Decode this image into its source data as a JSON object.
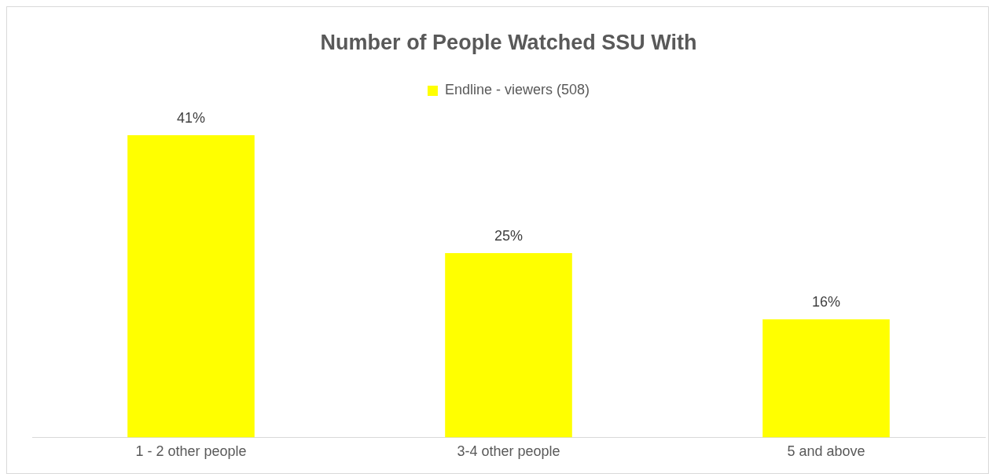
{
  "chart_data": {
    "type": "bar",
    "title": "Number of People Watched SSU With",
    "categories": [
      "1 - 2 other people",
      "3-4 other people",
      "5 and above"
    ],
    "series": [
      {
        "name": "Endline - viewers (508)",
        "color": "#ffff00",
        "values": [
          41,
          25,
          16
        ],
        "value_labels": [
          "41%",
          "25%",
          "16%"
        ]
      }
    ],
    "legend": "top",
    "grid": false
  }
}
